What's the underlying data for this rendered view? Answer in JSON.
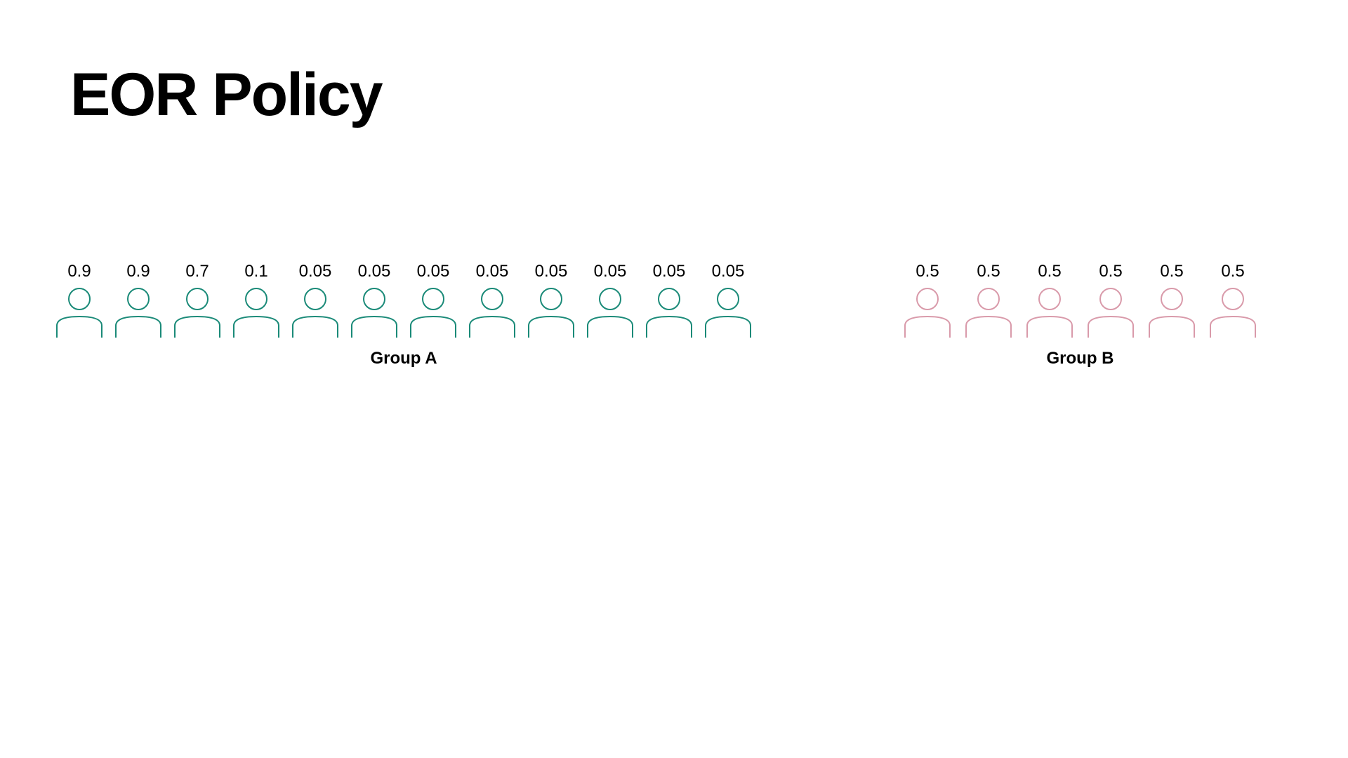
{
  "title": "EOR Policy",
  "colors": {
    "group_a": "#1a8a78",
    "group_b": "#d99aaa"
  },
  "icon": "person-icon",
  "groups": [
    {
      "id": "group-a",
      "label": "Group A",
      "values": [
        "0.9",
        "0.9",
        "0.7",
        "0.1",
        "0.05",
        "0.05",
        "0.05",
        "0.05",
        "0.05",
        "0.05",
        "0.05",
        "0.05"
      ]
    },
    {
      "id": "group-b",
      "label": "Group B",
      "values": [
        "0.5",
        "0.5",
        "0.5",
        "0.5",
        "0.5",
        "0.5"
      ]
    }
  ]
}
